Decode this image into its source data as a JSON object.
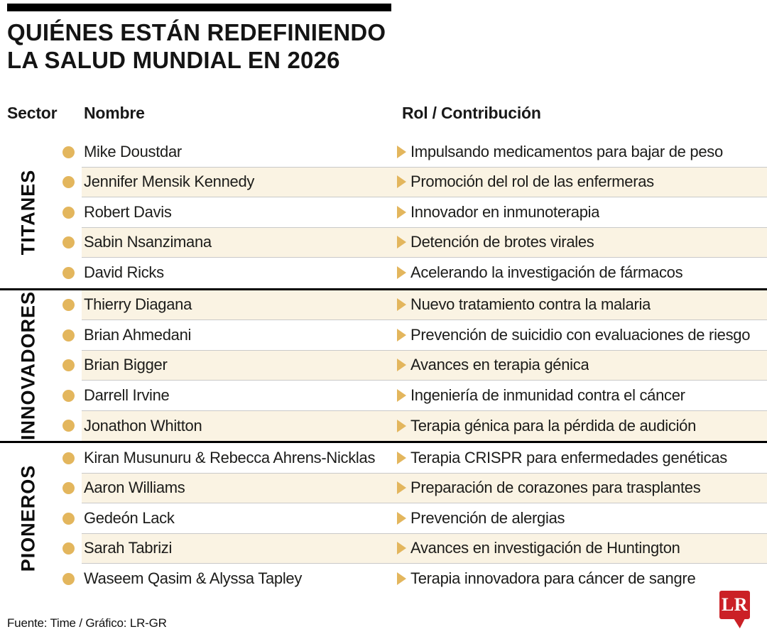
{
  "title": {
    "line1": "QUIÉNES ESTÁN REDEFINIENDO",
    "line2": "LA SALUD MUNDIAL EN 2026"
  },
  "columns": {
    "sector": "Sector",
    "nombre": "Nombre",
    "rol": "Rol / Contribución"
  },
  "sections": [
    {
      "sector": "TITANES",
      "rows": [
        {
          "name": "Mike Doustdar",
          "role": "Impulsando medicamentos para bajar de peso"
        },
        {
          "name": "Jennifer Mensik Kennedy",
          "role": "Promoción del rol de las enfermeras"
        },
        {
          "name": "Robert Davis",
          "role": "Innovador en inmunoterapia"
        },
        {
          "name": "Sabin Nsanzimana",
          "role": "Detención de brotes virales"
        },
        {
          "name": "David Ricks",
          "role": "Acelerando la investigación de fármacos"
        }
      ]
    },
    {
      "sector": "INNOVADORES",
      "rows": [
        {
          "name": "Thierry Diagana",
          "role": "Nuevo tratamiento contra la malaria"
        },
        {
          "name": "Brian Ahmedani",
          "role": "Prevención de suicidio con evaluaciones de riesgo"
        },
        {
          "name": "Brian Bigger",
          "role": "Avances en terapia génica"
        },
        {
          "name": "Darrell Irvine",
          "role": "Ingeniería de inmunidad contra el cáncer"
        },
        {
          "name": "Jonathon Whitton",
          "role": "Terapia génica para la pérdida de audición"
        }
      ]
    },
    {
      "sector": "PIONEROS",
      "rows": [
        {
          "name": "Kiran Musunuru & Rebecca Ahrens-Nicklas",
          "role": "Terapia CRISPR para enfermedades genéticas"
        },
        {
          "name": "Aaron Williams",
          "role": "Preparación de corazones para trasplantes"
        },
        {
          "name": "Gedeón Lack",
          "role": "Prevención de alergias"
        },
        {
          "name": "Sarah Tabrizi",
          "role": "Avances en investigación de Huntington"
        },
        {
          "name": "Waseem Qasim & Alyssa Tapley",
          "role": "Terapia innovadora para cáncer de sangre"
        }
      ]
    }
  ],
  "footer": {
    "source": "Fuente: Time / Gráfico: LR-GR",
    "logo_text": "LR"
  },
  "colors": {
    "accent_gold": "#e3b65d",
    "row_cream": "#faf3e3",
    "logo_red": "#cb2026",
    "divider_black": "#000000",
    "separator_gray": "#c9c9c9"
  },
  "chart_data": {
    "type": "table",
    "title": "QUIÉNES ESTÁN REDEFINIENDO LA SALUD MUNDIAL EN 2026",
    "columns": [
      "Sector",
      "Nombre",
      "Rol / Contribución"
    ],
    "rows": [
      [
        "TITANES",
        "Mike Doustdar",
        "Impulsando medicamentos para bajar de peso"
      ],
      [
        "TITANES",
        "Jennifer Mensik Kennedy",
        "Promoción del rol de las enfermeras"
      ],
      [
        "TITANES",
        "Robert Davis",
        "Innovador en inmunoterapia"
      ],
      [
        "TITANES",
        "Sabin Nsanzimana",
        "Detención de brotes virales"
      ],
      [
        "TITANES",
        "David Ricks",
        "Acelerando la investigación de fármacos"
      ],
      [
        "INNOVADORES",
        "Thierry Diagana",
        "Nuevo tratamiento contra la malaria"
      ],
      [
        "INNOVADORES",
        "Brian Ahmedani",
        "Prevención de suicidio con evaluaciones de riesgo"
      ],
      [
        "INNOVADORES",
        "Brian Bigger",
        "Avances en terapia génica"
      ],
      [
        "INNOVADORES",
        "Darrell Irvine",
        "Ingeniería de inmunidad contra el cáncer"
      ],
      [
        "INNOVADORES",
        "Jonathon Whitton",
        "Terapia génica para la pérdida de audición"
      ],
      [
        "PIONEROS",
        "Kiran Musunuru & Rebecca Ahrens-Nicklas",
        "Terapia CRISPR para enfermedades genéticas"
      ],
      [
        "PIONEROS",
        "Aaron Williams",
        "Preparación de corazones para trasplantes"
      ],
      [
        "PIONEROS",
        "Gedeón Lack",
        "Prevención de alergias"
      ],
      [
        "PIONEROS",
        "Sarah Tabrizi",
        "Avances en investigación de Huntington"
      ],
      [
        "PIONEROS",
        "Waseem Qasim & Alyssa Tapley",
        "Terapia innovadora para cáncer de sangre"
      ]
    ],
    "source": "Fuente: Time / Gráfico: LR-GR"
  }
}
